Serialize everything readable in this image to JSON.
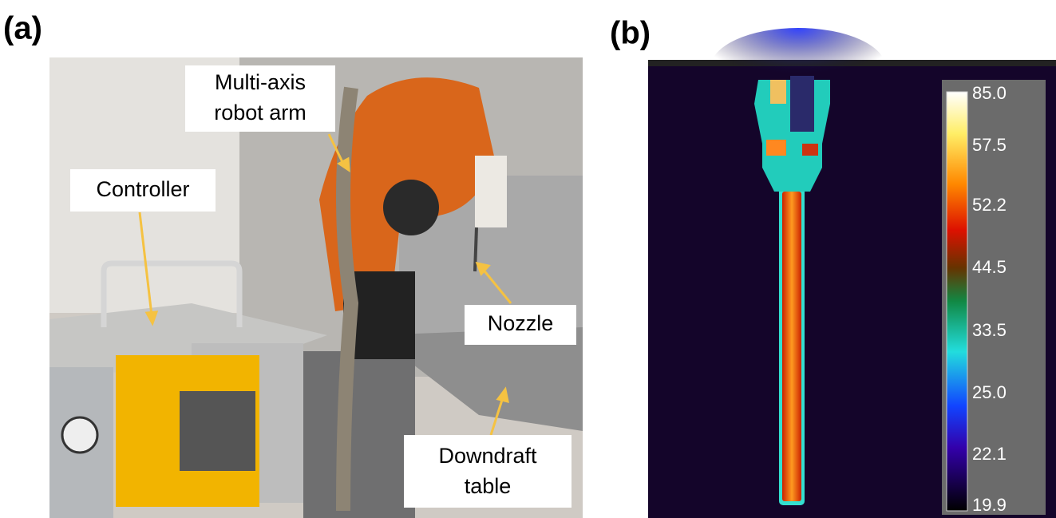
{
  "panel_a": {
    "label": "(a)",
    "annotations": [
      {
        "lines": [
          "Multi-axis",
          "robot arm"
        ]
      },
      {
        "lines": [
          "Controller"
        ]
      },
      {
        "lines": [
          "Nozzle"
        ]
      },
      {
        "lines": [
          "Downdraft",
          "table"
        ]
      }
    ]
  },
  "panel_b": {
    "label": "(b)",
    "colorbar_labels": [
      "85.0",
      "57.5",
      "52.2",
      "44.5",
      "33.5",
      "25.0",
      "22.1",
      "19.9"
    ]
  }
}
